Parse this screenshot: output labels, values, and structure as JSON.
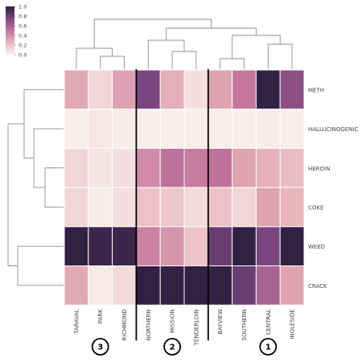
{
  "chart_data": {
    "type": "heatmap",
    "columns": [
      "TARAVAL",
      "PARK",
      "RICHMOND",
      "NORTHERN",
      "MISSION",
      "TENDERLOIN",
      "BAYVIEW",
      "SOUTHERN",
      "CENTRAL",
      "INGLESIDE"
    ],
    "rows": [
      "METH",
      "HALLUCINOGENIC",
      "HEROIN",
      "COKE",
      "WEED",
      "CRACK"
    ],
    "values": [
      [
        0.3,
        0.12,
        0.33,
        0.75,
        0.28,
        0.08,
        0.32,
        0.5,
        0.98,
        0.7
      ],
      [
        0.02,
        0.05,
        0.03,
        0.02,
        0.02,
        0.02,
        0.02,
        0.02,
        0.03,
        0.02
      ],
      [
        0.12,
        0.06,
        0.08,
        0.42,
        0.52,
        0.48,
        0.52,
        0.32,
        0.27,
        0.22
      ],
      [
        0.12,
        0.03,
        0.08,
        0.2,
        0.18,
        0.1,
        0.2,
        0.12,
        0.32,
        0.25
      ],
      [
        0.98,
        0.95,
        0.95,
        0.45,
        0.38,
        0.2,
        0.8,
        0.98,
        0.75,
        0.98
      ],
      [
        0.3,
        0.04,
        0.1,
        0.98,
        0.98,
        0.98,
        0.98,
        0.8,
        0.6,
        0.32
      ]
    ],
    "colorbar": {
      "min": 0.0,
      "max": 1.0,
      "ticks": [
        "1.0",
        "0.8",
        "0.6",
        "0.4",
        "0.2",
        "0.0"
      ]
    },
    "colors": {
      "low": "#faf3f0",
      "high": "#2d1e3e",
      "cluster_line": "#000000",
      "dendrogram": "#8f8f8f"
    },
    "cluster_markers": [
      "3",
      "2",
      "1"
    ],
    "row_dendrogram": true,
    "column_dendrogram": true
  }
}
